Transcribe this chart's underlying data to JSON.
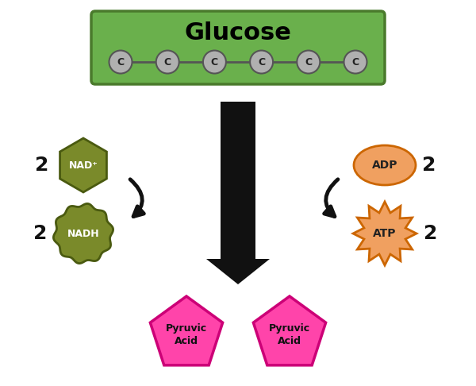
{
  "bg_color": "#ffffff",
  "glucose_box_color": "#6ab04c",
  "glucose_box_edge": "#4a7a2c",
  "glucose_text": "Glucose",
  "glucose_text_color": "#000000",
  "carbon_color": "#b0b0b0",
  "carbon_edge": "#555555",
  "carbon_label": "C",
  "nad_color": "#7a8a2a",
  "nad_edge": "#4a5a10",
  "nad_text": "NAD⁺",
  "nadh_color": "#7a8a2a",
  "nadh_edge": "#4a5a10",
  "nadh_text": "NADH",
  "adp_fill": "#f0a060",
  "adp_edge": "#cc6600",
  "adp_text": "ADP",
  "atp_fill": "#f0a060",
  "atp_edge": "#cc6600",
  "atp_text": "ATP",
  "pyruvic_fill": "#ff44aa",
  "pyruvic_edge": "#cc0077",
  "pyruvic_text": "Pyruvic\nAcid",
  "arrow_color": "#111111",
  "num_carbons": 6,
  "label_2_color": "#111111"
}
